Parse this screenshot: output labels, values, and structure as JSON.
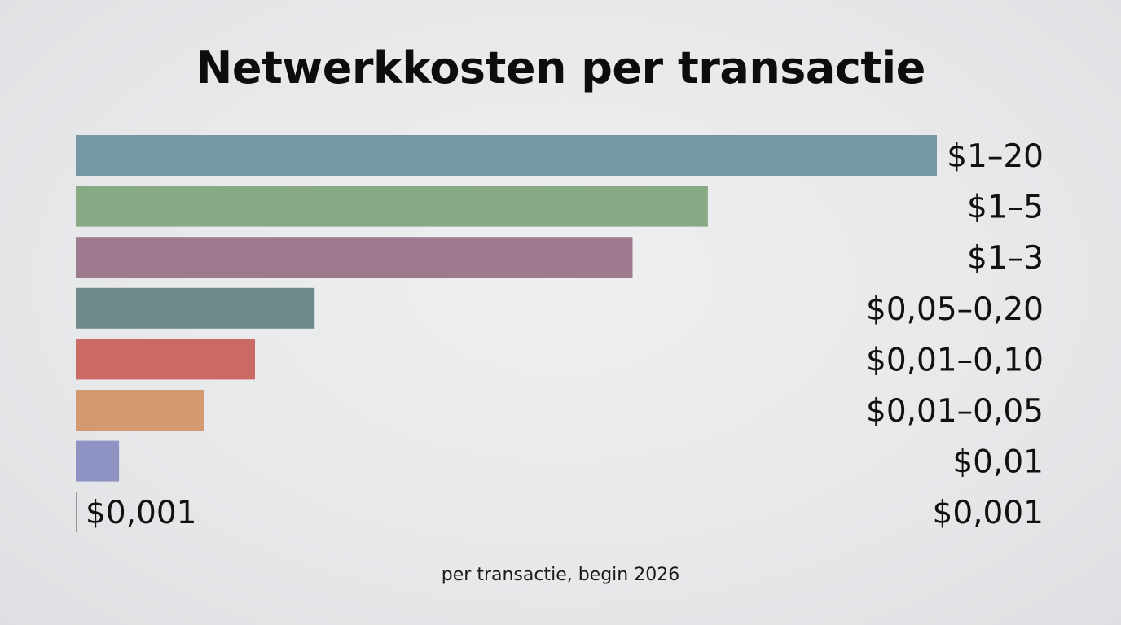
{
  "chart_data": {
    "type": "bar",
    "orientation": "horizontal",
    "title": "Netwerkkosten per transactie",
    "subtitle": "per transactie, begin 2026",
    "xlabel": "",
    "ylabel": "",
    "grid": false,
    "legend": "none",
    "value_unit": "USD",
    "bars": [
      {
        "value": 20,
        "label": "$1–20",
        "color": "#7598a3"
      },
      {
        "value": 5,
        "label": "$1–5",
        "color": "#87a984"
      },
      {
        "value": 3,
        "label": "$1–3",
        "color": "#9e7a8e"
      },
      {
        "value": 0.2,
        "label": "$0,05–0,20",
        "color": "#6e8a8a"
      },
      {
        "value": 0.1,
        "label": "$0,01–0,10",
        "color": "#cb6a64"
      },
      {
        "value": 0.05,
        "label": "$0,01–0,05",
        "color": "#d29a6e"
      },
      {
        "value": 0.01,
        "label": "$0,01",
        "color": "#8f93c4"
      },
      {
        "value": 0.001,
        "label": "$0,001",
        "color": "#9a9a9a",
        "inline_label": "$0,001"
      }
    ]
  }
}
